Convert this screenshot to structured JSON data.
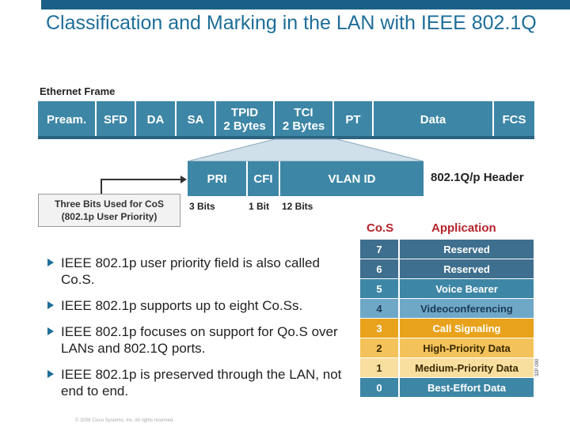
{
  "slide": {
    "title": "Classification and Marking in the LAN with IEEE 802.1Q"
  },
  "frame": {
    "label": "Ethernet Frame",
    "fields": [
      {
        "l1": "Pream.",
        "l2": ""
      },
      {
        "l1": "SFD",
        "l2": ""
      },
      {
        "l1": "DA",
        "l2": ""
      },
      {
        "l1": "SA",
        "l2": ""
      },
      {
        "l1": "TPID",
        "l2": "2 Bytes"
      },
      {
        "l1": "TCI",
        "l2": "2 Bytes"
      },
      {
        "l1": "PT",
        "l2": ""
      },
      {
        "l1": "Data",
        "l2": ""
      },
      {
        "l1": "FCS",
        "l2": ""
      }
    ]
  },
  "header": {
    "fields": [
      "PRI",
      "CFI",
      "VLAN ID"
    ],
    "label": "802.1Q/p Header",
    "bits": [
      "3 Bits",
      "1 Bit",
      "12 Bits"
    ]
  },
  "callout": {
    "line1": "Three Bits Used for CoS",
    "line2": "(802.1p User Priority)"
  },
  "bullets": [
    "IEEE 802.1p user priority field is also called Co.S.",
    "IEEE 802.1p supports up to eight Co.Ss.",
    "IEEE 802.1p focuses on support for Qo.S over LANs and 802.1Q ports.",
    "IEEE 802.1p is preserved through the LAN, not end to end."
  ],
  "cos_table": {
    "col_cos": "Co.S",
    "col_app": "Application",
    "rows": [
      {
        "cos": "7",
        "app": "Reserved",
        "color": "#3f6f8e"
      },
      {
        "cos": "6",
        "app": "Reserved",
        "color": "#3f6f8e"
      },
      {
        "cos": "5",
        "app": "Voice Bearer",
        "color": "#3d86a6"
      },
      {
        "cos": "4",
        "app": "Videoconferencing",
        "color": "#6fa8c7",
        "text": "#1a3a55"
      },
      {
        "cos": "3",
        "app": "Call Signaling",
        "color": "#e8a21c"
      },
      {
        "cos": "2",
        "app": "High-Priority Data",
        "color": "#f3c25a",
        "text": "#3a2a00"
      },
      {
        "cos": "1",
        "app": "Medium-Priority Data",
        "color": "#f8dfa0",
        "text": "#3a2a00"
      },
      {
        "cos": "0",
        "app": "Best-Effort Data",
        "color": "#3d86a6"
      }
    ]
  },
  "side_code": "32P 090",
  "copyright": "© 2006 Cisco Systems, Inc. All rights reserved."
}
